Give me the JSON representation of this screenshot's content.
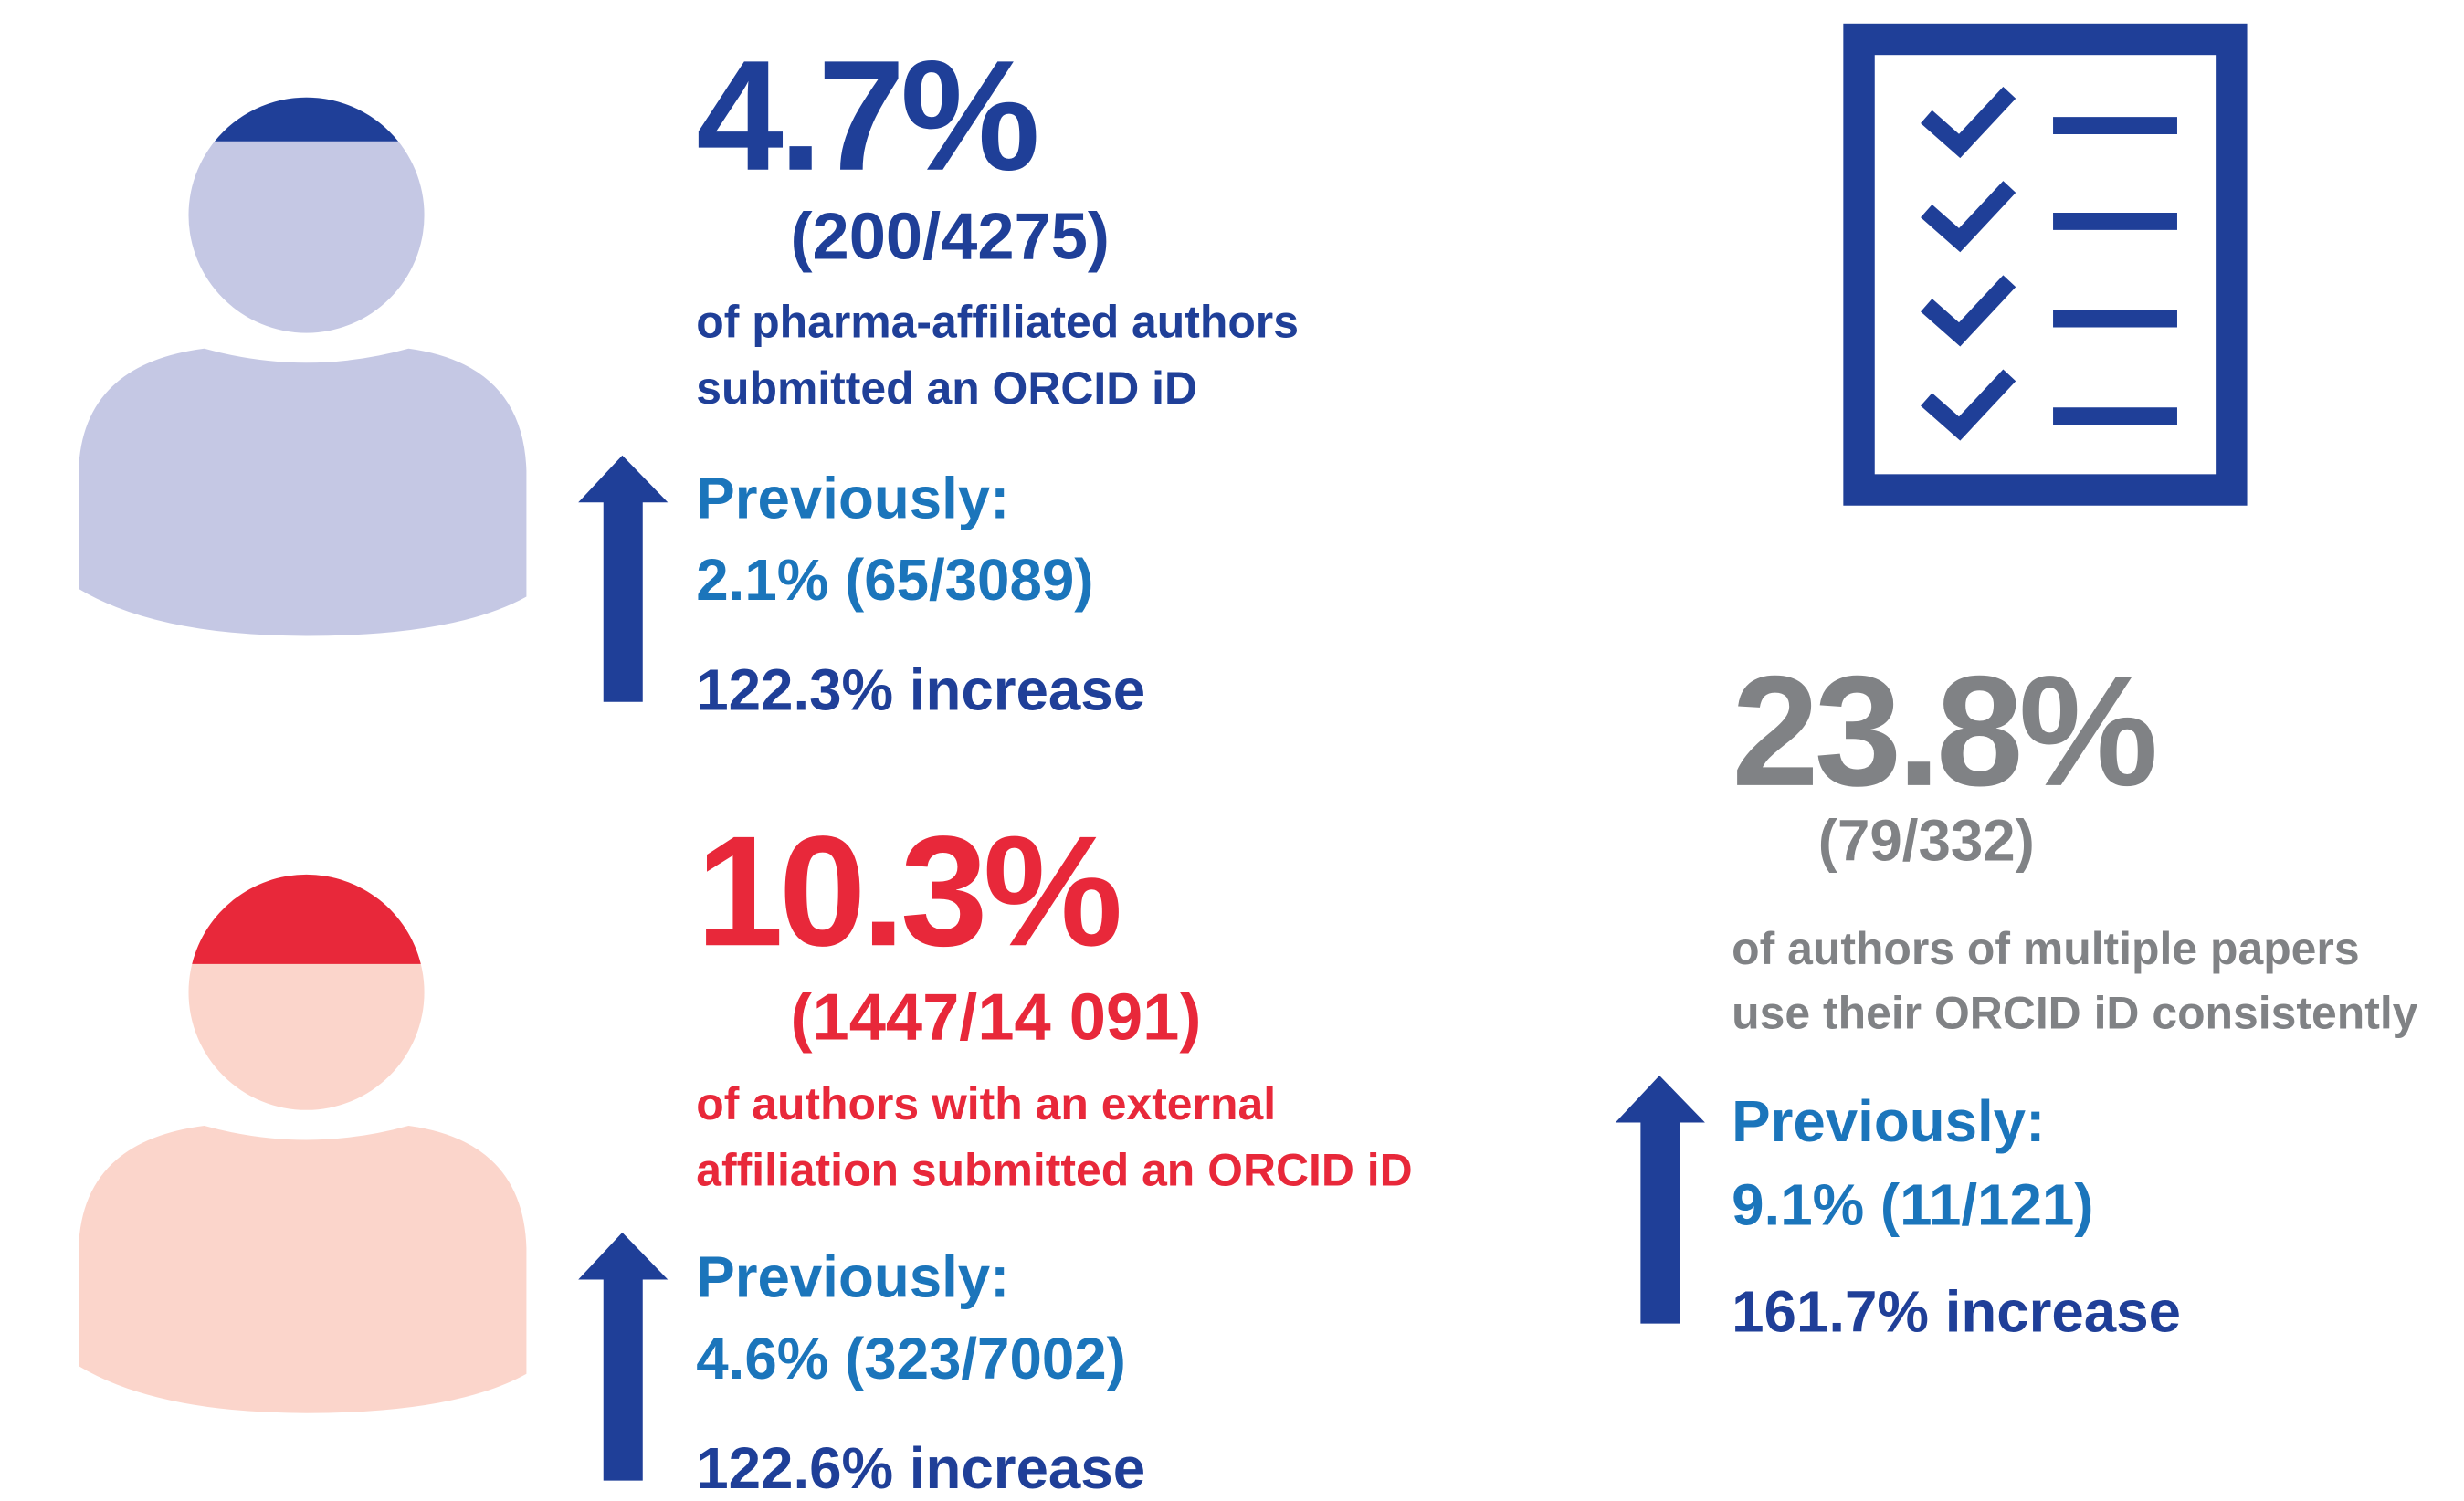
{
  "pharma": {
    "percent": "4.7%",
    "fraction": "(200/4275)",
    "description": [
      "of pharma-affiliated authors",
      "submitted an ORCID iD"
    ],
    "previously_label": "Previously:",
    "previously": "2.1% (65/3089)",
    "increase": "122.3% increase"
  },
  "external": {
    "percent": "10.3%",
    "fraction": "(1447/14 091)",
    "description": [
      "of authors with an external",
      "affiliation submitted an ORCID iD"
    ],
    "previously_label": "Previously:",
    "previously": "4.6% (323/7002)",
    "increase": "122.6% increase"
  },
  "consistency": {
    "percent": "23.8%",
    "fraction": "(79/332)",
    "description": [
      "of authors of multiple papers",
      "use their ORCID iD consistently"
    ],
    "previously_label": "Previously:",
    "previously": "9.1% (11/121)",
    "increase": "161.7% increase"
  }
}
